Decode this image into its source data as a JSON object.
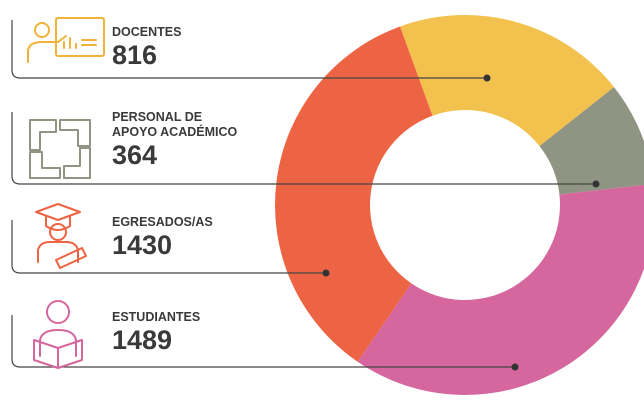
{
  "chart_data": {
    "type": "donut",
    "categories": [
      "DOCENTES",
      "PERSONAL DE APOYO ACADÉMICO",
      "EGRESADOS/AS",
      "ESTUDIANTES"
    ],
    "values": [
      816,
      364,
      1430,
      1489
    ],
    "colors": [
      "#f2c14e",
      "#8f9483",
      "#ec6443",
      "#d5679e"
    ]
  }
}
